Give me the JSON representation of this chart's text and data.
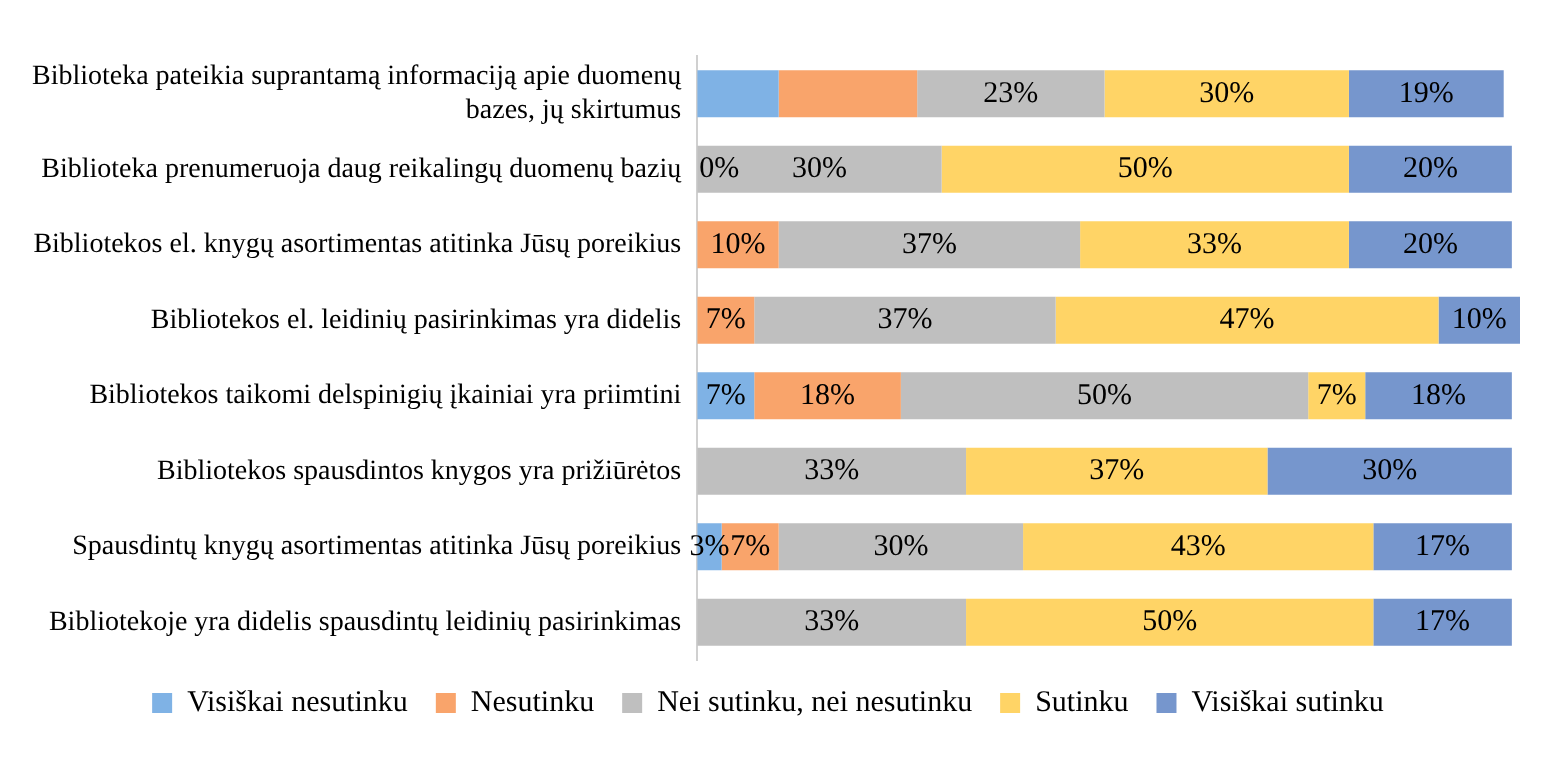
{
  "chart_data": {
    "type": "bar",
    "orientation": "horizontal",
    "stacked": true,
    "legend": "bottom",
    "annotations": [
      {
        "text": "0%",
        "x": 0,
        "y": "Biblioteka prenumeruoja daug reikalingų duomenų bazių"
      }
    ],
    "categories": [
      "Biblioteka pateikia suprantamą informaciją apie duomenų bazes, jų skirtumus",
      "Biblioteka prenumeruoja daug reikalingų duomenų bazių",
      "Bibliotekos el. knygų asortimentas atitinka Jūsų poreikius",
      "Bibliotekos el. leidinių pasirinkimas yra didelis",
      "Bibliotekos taikomi delspinigių įkainiai yra priimtini",
      "Bibliotekos spausdintos knygos yra prižiūrėtos",
      "Spausdintų knygų asortimentas atitinka Jūsų poreikius",
      "Bibliotekoje yra didelis spausdintų leidinių pasirinkimas"
    ],
    "series": [
      {
        "name": "Visiškai nesutinku",
        "color": "#7fb2e5",
        "values": [
          10,
          null,
          null,
          null,
          7,
          null,
          3,
          null
        ],
        "value_labels": [
          null,
          null,
          null,
          null,
          "7%",
          null,
          "3%",
          null
        ]
      },
      {
        "name": "Nesutinku",
        "color": "#f9a46b",
        "values": [
          17,
          null,
          10,
          7,
          18,
          null,
          7,
          null
        ],
        "value_labels": [
          null,
          null,
          "10%",
          "7%",
          "18%",
          null,
          "7%",
          null
        ]
      },
      {
        "name": "Nei sutinku, nei nesutinku",
        "color": "#bfbfbf",
        "values": [
          23,
          30,
          37,
          37,
          50,
          33,
          30,
          33
        ],
        "value_labels": [
          "23%",
          "30%",
          "37%",
          "37%",
          "50%",
          "33%",
          "30%",
          "33%"
        ]
      },
      {
        "name": "Sutinku",
        "color": "#ffd466",
        "values": [
          30,
          50,
          33,
          47,
          7,
          37,
          43,
          50
        ],
        "value_labels": [
          "30%",
          "50%",
          "33%",
          "47%",
          "7%",
          "37%",
          "43%",
          "50%"
        ]
      },
      {
        "name": "Visiškai sutinku",
        "color": "#7696cd",
        "values": [
          19,
          20,
          20,
          10,
          18,
          30,
          17,
          17
        ],
        "value_labels": [
          "19%",
          "20%",
          "20%",
          "10%",
          "18%",
          "30%",
          "17%",
          "17%"
        ]
      }
    ]
  }
}
